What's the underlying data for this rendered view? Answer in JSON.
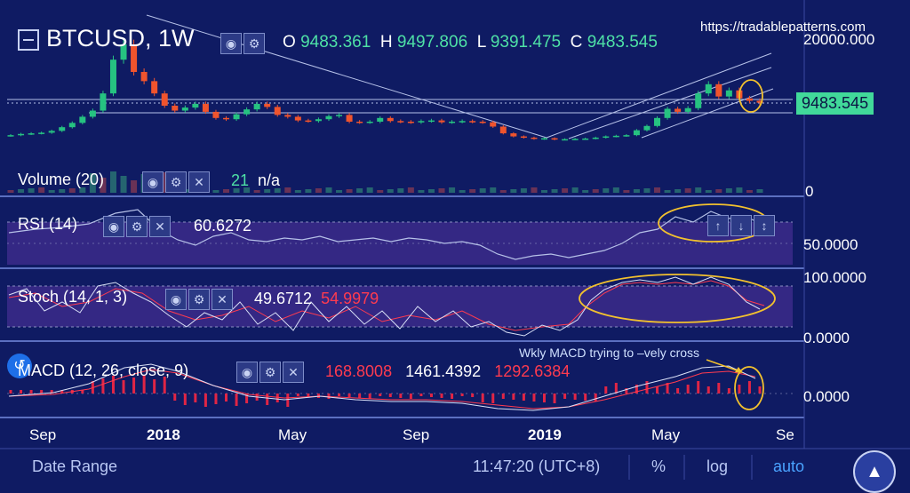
{
  "header": {
    "symbol": "BTCUSD",
    "interval": "1W",
    "ohlc": {
      "o_label": "O",
      "o": "9483.361",
      "h_label": "H",
      "h": "9497.806",
      "l_label": "L",
      "l": "9391.475",
      "c_label": "C",
      "c": "9483.545"
    },
    "watermark": "https://tradablepatterns.com",
    "last_price": "9483.545"
  },
  "panes": {
    "volume": {
      "label": "Volume (20)",
      "value": "21",
      "extra": "n/a"
    },
    "rsi": {
      "label": "RSI (14)",
      "value": "60.6272"
    },
    "stoch": {
      "label": "Stoch (14, 1, 3)",
      "k": "49.6712",
      "d": "54.9979"
    },
    "macd": {
      "label": "MACD (12, 26, close, 9)",
      "hist": "168.8008",
      "macd": "1461.4392",
      "signal": "1292.6384"
    }
  },
  "annotation": "Wkly MACD trying to –vely cross",
  "bottom_bar": {
    "date_range": "Date Range",
    "time": "11:47:20 (UTC+8)",
    "pct": "%",
    "log": "log",
    "auto": "auto"
  },
  "colors": {
    "background": "#0f1b63",
    "up": "#26c281",
    "down": "#f0542d",
    "highlight": "#f2c12e",
    "line": "#b6c1e8",
    "tag": "#41d99a"
  },
  "chart_data": {
    "type": "candlestick",
    "title": "BTCUSD 1W",
    "x_ticks": [
      "Sep",
      "2018",
      "May",
      "Sep",
      "2019",
      "May",
      "Se"
    ],
    "y_ticks": [
      "20000.000"
    ],
    "last_price": 9483.545,
    "close_series": [
      4200,
      4400,
      4500,
      4600,
      4900,
      5500,
      6200,
      7200,
      8200,
      11000,
      16500,
      19000,
      14500,
      13000,
      11000,
      9000,
      8200,
      8700,
      9300,
      8000,
      7000,
      6800,
      7600,
      8400,
      9300,
      8800,
      7500,
      7200,
      6600,
      6500,
      6800,
      7300,
      7500,
      6400,
      6300,
      6400,
      7000,
      6500,
      6400,
      6300,
      6500,
      6600,
      6300,
      6400,
      6500,
      6400,
      6300,
      5600,
      4500,
      4000,
      3800,
      3600,
      3700,
      3500,
      3550,
      3600,
      3650,
      3800,
      4000,
      4100,
      4200,
      5000,
      5700,
      7000,
      8500,
      8000,
      8600,
      11000,
      12500,
      10500,
      11500,
      10200,
      9800,
      9483.545
    ],
    "highlighted_regions": [
      "2019 price breakout",
      "RSI top",
      "Stoch top",
      "MACD cross"
    ],
    "panes": [
      {
        "name": "Volume (20)",
        "y_ticks": [
          "0"
        ]
      },
      {
        "name": "RSI (14)",
        "y_ticks": [
          "50.0000"
        ],
        "value": 60.6272
      },
      {
        "name": "Stoch (14, 1, 3)",
        "y_ticks": [
          "100.0000",
          "0.0000"
        ],
        "k": 49.6712,
        "d": 54.9979
      },
      {
        "name": "MACD (12, 26, close, 9)",
        "y_ticks": [
          "0.0000"
        ],
        "histogram": 168.8008,
        "macd": 1461.4392,
        "signal": 1292.6384
      }
    ]
  }
}
